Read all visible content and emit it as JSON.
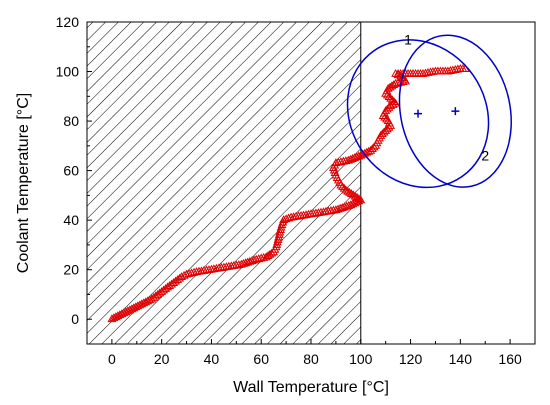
{
  "chart_data": {
    "type": "scatter",
    "xlabel": "Wall Temperature [°C]",
    "ylabel": "Coolant Temperature [°C]",
    "xlim": [
      -10,
      170
    ],
    "ylim": [
      -10,
      120
    ],
    "xticks": [
      0,
      20,
      40,
      60,
      80,
      100,
      120,
      140,
      160
    ],
    "yticks": [
      0,
      20,
      40,
      60,
      80,
      100,
      120
    ],
    "grid": false,
    "hatched_region": {
      "x_from": -10,
      "x_to": 100,
      "pattern": "diagonal lines"
    },
    "series": [
      {
        "marker": "open-triangle",
        "color": "#e00000",
        "points": [
          [
            0,
            0
          ],
          [
            4,
            2
          ],
          [
            8,
            4
          ],
          [
            12,
            6
          ],
          [
            16,
            8
          ],
          [
            20,
            11
          ],
          [
            24,
            14
          ],
          [
            28,
            17
          ],
          [
            30,
            18
          ],
          [
            34,
            19
          ],
          [
            40,
            20
          ],
          [
            46,
            21
          ],
          [
            52,
            22
          ],
          [
            58,
            24
          ],
          [
            62,
            25
          ],
          [
            65,
            27
          ],
          [
            66,
            29
          ],
          [
            67,
            33
          ],
          [
            68,
            37
          ],
          [
            69,
            40
          ],
          [
            72,
            41
          ],
          [
            78,
            42
          ],
          [
            84,
            43
          ],
          [
            90,
            44
          ],
          [
            96,
            46
          ],
          [
            100,
            48
          ],
          [
            97,
            50
          ],
          [
            94,
            52
          ],
          [
            92,
            54
          ],
          [
            91,
            56
          ],
          [
            90,
            58
          ],
          [
            89,
            61
          ],
          [
            90,
            63
          ],
          [
            95,
            64
          ],
          [
            100,
            66
          ],
          [
            104,
            68
          ],
          [
            106,
            70
          ],
          [
            107,
            72
          ],
          [
            108,
            74
          ],
          [
            110,
            76
          ],
          [
            112,
            78
          ],
          [
            111,
            80
          ],
          [
            109,
            82
          ],
          [
            110,
            84
          ],
          [
            112,
            86
          ],
          [
            114,
            87
          ],
          [
            112,
            89
          ],
          [
            110,
            91
          ],
          [
            111,
            93
          ],
          [
            114,
            95
          ],
          [
            118,
            96
          ],
          [
            116,
            98
          ],
          [
            114,
            99
          ],
          [
            120,
            99
          ],
          [
            125,
            99
          ],
          [
            130,
            100
          ],
          [
            135,
            100
          ],
          [
            140,
            101
          ],
          [
            142,
            101
          ]
        ]
      }
    ],
    "ellipses": [
      {
        "label": "1",
        "center": [
          123,
          83
        ],
        "rx": 27,
        "ry": 31,
        "rotation_deg": -35,
        "color": "#0000cc"
      },
      {
        "label": "2",
        "center": [
          138,
          84
        ],
        "rx": 22,
        "ry": 31,
        "rotation_deg": -12,
        "color": "#0000cc"
      }
    ],
    "ellipse_labels": [
      {
        "text": "1",
        "at": [
          119,
          111
        ]
      },
      {
        "text": "2",
        "at": [
          150,
          64
        ]
      }
    ]
  }
}
